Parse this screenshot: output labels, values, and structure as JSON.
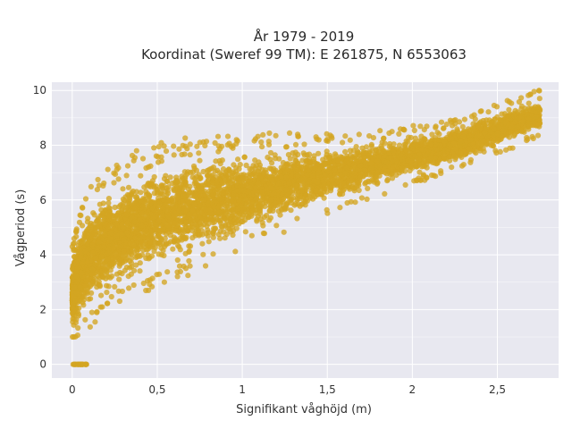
{
  "chart_data": {
    "type": "scatter",
    "title_lines": [
      "År 1979 - 2019",
      "Koordinat (Sweref 99 TM): E 261875, N 6553063"
    ],
    "xlabel": "Signifikant våghöjd (m)",
    "ylabel": "Vågperiod (s)",
    "xlim": [
      -0.12,
      2.86
    ],
    "ylim": [
      -0.5,
      10.3
    ],
    "xticks": [
      0,
      0.5,
      1,
      1.5,
      2,
      2.5
    ],
    "xtick_labels": [
      "0",
      "0,5",
      "1",
      "1,5",
      "2",
      "2,5"
    ],
    "yticks": [
      0,
      2,
      4,
      6,
      8,
      10
    ],
    "ytick_labels": [
      "0",
      "2",
      "4",
      "6",
      "8",
      "10"
    ],
    "grid": true,
    "legend": "none",
    "marker_color": "#D4A521",
    "plot_background": "#E8E8F0",
    "envelope": {
      "x": [
        0,
        0.02,
        0.05,
        0.1,
        0.2,
        0.3,
        0.4,
        0.5,
        0.6,
        0.8,
        1.0,
        1.2,
        1.4,
        1.6,
        1.8,
        2.0,
        2.2,
        2.4,
        2.6,
        2.75
      ],
      "upper": [
        3.8,
        4.6,
        5.2,
        5.8,
        6.4,
        6.8,
        7.1,
        7.3,
        7.5,
        7.7,
        7.8,
        7.9,
        8.0,
        8.1,
        8.2,
        8.4,
        8.6,
        9.0,
        9.5,
        9.8
      ],
      "lower": [
        1.1,
        1.2,
        1.5,
        1.9,
        2.4,
        2.8,
        3.1,
        3.3,
        3.6,
        4.1,
        4.6,
        5.1,
        5.6,
        6.0,
        6.4,
        6.8,
        7.2,
        7.6,
        8.1,
        8.5
      ]
    },
    "zero_period_points": {
      "x_min": 0,
      "x_max": 0.09,
      "y": 0
    }
  }
}
